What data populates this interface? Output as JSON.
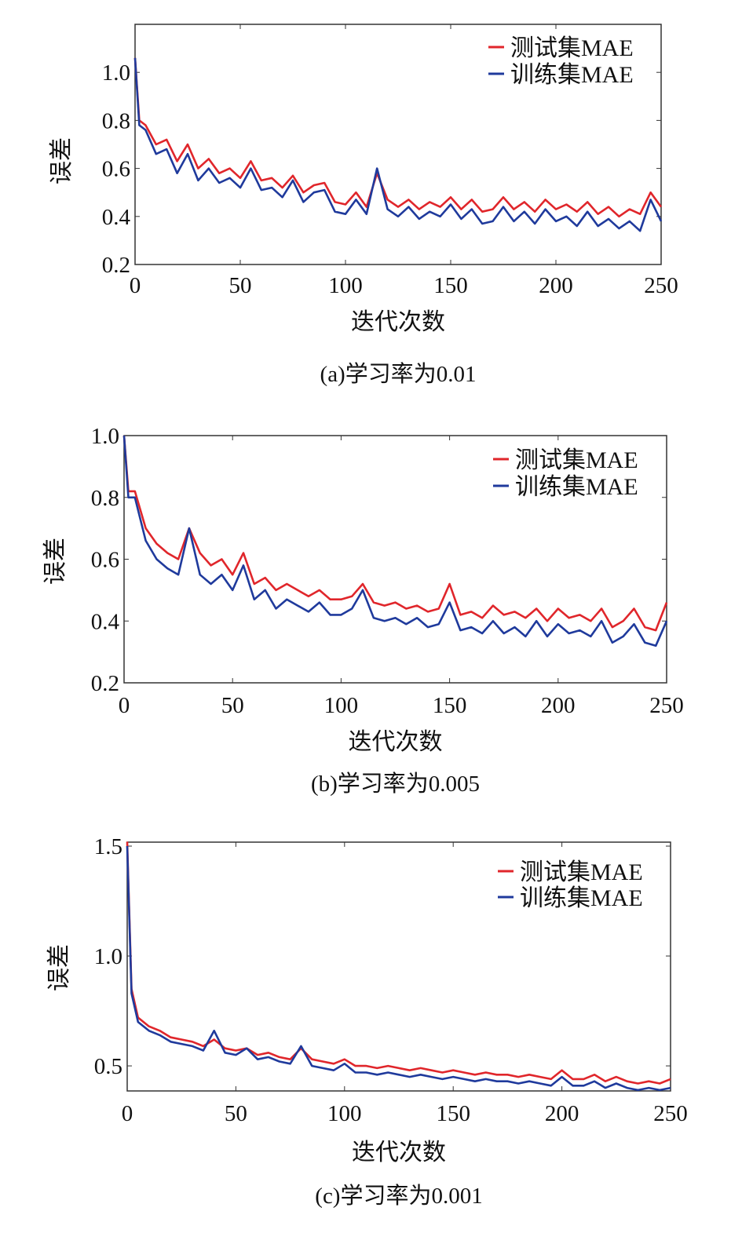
{
  "chart_data": [
    {
      "type": "line",
      "title": "(a)学习率为0.01",
      "xlabel": "迭代次数",
      "ylabel": "误差",
      "xlim": [
        0,
        250
      ],
      "ylim": [
        0.2,
        1.2
      ],
      "xticks": [
        "0",
        "50",
        "100",
        "150",
        "200",
        "250"
      ],
      "xtick_values": [
        0,
        50,
        100,
        150,
        200,
        250
      ],
      "yticks": [
        "0.2",
        "0.4",
        "0.6",
        "0.8",
        "1.0"
      ],
      "ytick_values": [
        0.2,
        0.4,
        0.6,
        0.8,
        1.0
      ],
      "legend_position": "top-right",
      "grid": false,
      "x": [
        0,
        2,
        5,
        10,
        15,
        20,
        25,
        30,
        35,
        40,
        45,
        50,
        55,
        60,
        65,
        70,
        75,
        80,
        85,
        90,
        95,
        100,
        105,
        110,
        115,
        120,
        125,
        130,
        135,
        140,
        145,
        150,
        155,
        160,
        165,
        170,
        175,
        180,
        185,
        190,
        195,
        200,
        205,
        210,
        215,
        220,
        225,
        230,
        235,
        240,
        245,
        250
      ],
      "series": [
        {
          "name": "测试集MAE",
          "color": "#e0262b",
          "values": [
            1.06,
            0.8,
            0.78,
            0.7,
            0.72,
            0.63,
            0.7,
            0.6,
            0.64,
            0.58,
            0.6,
            0.56,
            0.63,
            0.55,
            0.56,
            0.52,
            0.57,
            0.5,
            0.53,
            0.54,
            0.46,
            0.45,
            0.5,
            0.44,
            0.58,
            0.47,
            0.44,
            0.47,
            0.43,
            0.46,
            0.44,
            0.48,
            0.43,
            0.47,
            0.42,
            0.43,
            0.48,
            0.43,
            0.46,
            0.42,
            0.47,
            0.43,
            0.45,
            0.42,
            0.46,
            0.41,
            0.44,
            0.4,
            0.43,
            0.41,
            0.5,
            0.44
          ]
        },
        {
          "name": "训练集MAE",
          "color": "#1f3a9c",
          "values": [
            1.06,
            0.78,
            0.76,
            0.66,
            0.68,
            0.58,
            0.66,
            0.55,
            0.6,
            0.54,
            0.56,
            0.52,
            0.6,
            0.51,
            0.52,
            0.48,
            0.55,
            0.46,
            0.5,
            0.51,
            0.42,
            0.41,
            0.47,
            0.41,
            0.6,
            0.43,
            0.4,
            0.44,
            0.39,
            0.42,
            0.4,
            0.45,
            0.39,
            0.43,
            0.37,
            0.38,
            0.44,
            0.38,
            0.42,
            0.37,
            0.43,
            0.38,
            0.4,
            0.36,
            0.42,
            0.36,
            0.39,
            0.35,
            0.38,
            0.34,
            0.47,
            0.38
          ]
        }
      ]
    },
    {
      "type": "line",
      "title": "(b)学习率为0.005",
      "xlabel": "迭代次数",
      "ylabel": "误差",
      "xlim": [
        0,
        250
      ],
      "ylim": [
        0.2,
        1.0
      ],
      "xticks": [
        "0",
        "50",
        "100",
        "150",
        "200",
        "250"
      ],
      "xtick_values": [
        0,
        50,
        100,
        150,
        200,
        250
      ],
      "yticks": [
        "0.2",
        "0.4",
        "0.6",
        "0.8",
        "1.0"
      ],
      "ytick_values": [
        0.2,
        0.4,
        0.6,
        0.8,
        1.0
      ],
      "legend_position": "top-right",
      "grid": false,
      "x": [
        0,
        2,
        5,
        10,
        15,
        20,
        25,
        30,
        35,
        40,
        45,
        50,
        55,
        60,
        65,
        70,
        75,
        80,
        85,
        90,
        95,
        100,
        105,
        110,
        115,
        120,
        125,
        130,
        135,
        140,
        145,
        150,
        155,
        160,
        165,
        170,
        175,
        180,
        185,
        190,
        195,
        200,
        205,
        210,
        215,
        220,
        225,
        230,
        235,
        240,
        245,
        250
      ],
      "series": [
        {
          "name": "测试集MAE",
          "color": "#e0262b",
          "values": [
            1.0,
            0.82,
            0.82,
            0.7,
            0.65,
            0.62,
            0.6,
            0.7,
            0.62,
            0.58,
            0.6,
            0.55,
            0.62,
            0.52,
            0.54,
            0.5,
            0.52,
            0.5,
            0.48,
            0.5,
            0.47,
            0.47,
            0.48,
            0.52,
            0.46,
            0.45,
            0.46,
            0.44,
            0.45,
            0.43,
            0.44,
            0.52,
            0.42,
            0.43,
            0.41,
            0.45,
            0.42,
            0.43,
            0.41,
            0.44,
            0.4,
            0.44,
            0.41,
            0.42,
            0.4,
            0.44,
            0.38,
            0.4,
            0.44,
            0.38,
            0.37,
            0.46
          ]
        },
        {
          "name": "训练集MAE",
          "color": "#1f3a9c",
          "values": [
            1.0,
            0.8,
            0.8,
            0.66,
            0.6,
            0.57,
            0.55,
            0.7,
            0.55,
            0.52,
            0.55,
            0.5,
            0.58,
            0.47,
            0.5,
            0.44,
            0.47,
            0.45,
            0.43,
            0.46,
            0.42,
            0.42,
            0.44,
            0.5,
            0.41,
            0.4,
            0.41,
            0.39,
            0.41,
            0.38,
            0.39,
            0.46,
            0.37,
            0.38,
            0.36,
            0.4,
            0.36,
            0.38,
            0.35,
            0.4,
            0.35,
            0.39,
            0.36,
            0.37,
            0.35,
            0.4,
            0.33,
            0.35,
            0.39,
            0.33,
            0.32,
            0.4
          ]
        }
      ]
    },
    {
      "type": "line",
      "title": "(c)学习率为0.001",
      "xlabel": "迭代次数",
      "ylabel": "误差",
      "xlim": [
        0,
        250
      ],
      "ylim": [
        0.386,
        1.518
      ],
      "xticks": [
        "0",
        "50",
        "100",
        "150",
        "200",
        "250"
      ],
      "xtick_values": [
        0,
        50,
        100,
        150,
        200,
        250
      ],
      "yticks": [
        "0.5",
        "1.0",
        "1.5"
      ],
      "ytick_values": [
        0.5,
        1.0,
        1.5
      ],
      "legend_position": "top-right",
      "grid": false,
      "x": [
        0,
        2,
        5,
        10,
        15,
        20,
        25,
        30,
        35,
        40,
        45,
        50,
        55,
        60,
        65,
        70,
        75,
        80,
        85,
        90,
        95,
        100,
        105,
        110,
        115,
        120,
        125,
        130,
        135,
        140,
        145,
        150,
        155,
        160,
        165,
        170,
        175,
        180,
        185,
        190,
        195,
        200,
        205,
        210,
        215,
        220,
        225,
        230,
        235,
        240,
        245,
        250
      ],
      "series": [
        {
          "name": "测试集MAE",
          "color": "#e0262b",
          "values": [
            1.52,
            0.85,
            0.72,
            0.68,
            0.66,
            0.63,
            0.62,
            0.61,
            0.59,
            0.62,
            0.58,
            0.57,
            0.58,
            0.55,
            0.56,
            0.54,
            0.53,
            0.58,
            0.53,
            0.52,
            0.51,
            0.53,
            0.5,
            0.5,
            0.49,
            0.5,
            0.49,
            0.48,
            0.49,
            0.48,
            0.47,
            0.48,
            0.47,
            0.46,
            0.47,
            0.46,
            0.46,
            0.45,
            0.46,
            0.45,
            0.44,
            0.48,
            0.44,
            0.44,
            0.46,
            0.43,
            0.45,
            0.43,
            0.42,
            0.43,
            0.42,
            0.44
          ]
        },
        {
          "name": "训练集MAE",
          "color": "#1f3a9c",
          "values": [
            1.5,
            0.83,
            0.7,
            0.66,
            0.64,
            0.61,
            0.6,
            0.59,
            0.57,
            0.66,
            0.56,
            0.55,
            0.58,
            0.53,
            0.54,
            0.52,
            0.51,
            0.59,
            0.5,
            0.49,
            0.48,
            0.51,
            0.47,
            0.47,
            0.46,
            0.47,
            0.46,
            0.45,
            0.46,
            0.45,
            0.44,
            0.45,
            0.44,
            0.43,
            0.44,
            0.43,
            0.43,
            0.42,
            0.43,
            0.42,
            0.41,
            0.45,
            0.41,
            0.41,
            0.43,
            0.4,
            0.42,
            0.4,
            0.39,
            0.4,
            0.39,
            0.4
          ]
        }
      ]
    }
  ]
}
